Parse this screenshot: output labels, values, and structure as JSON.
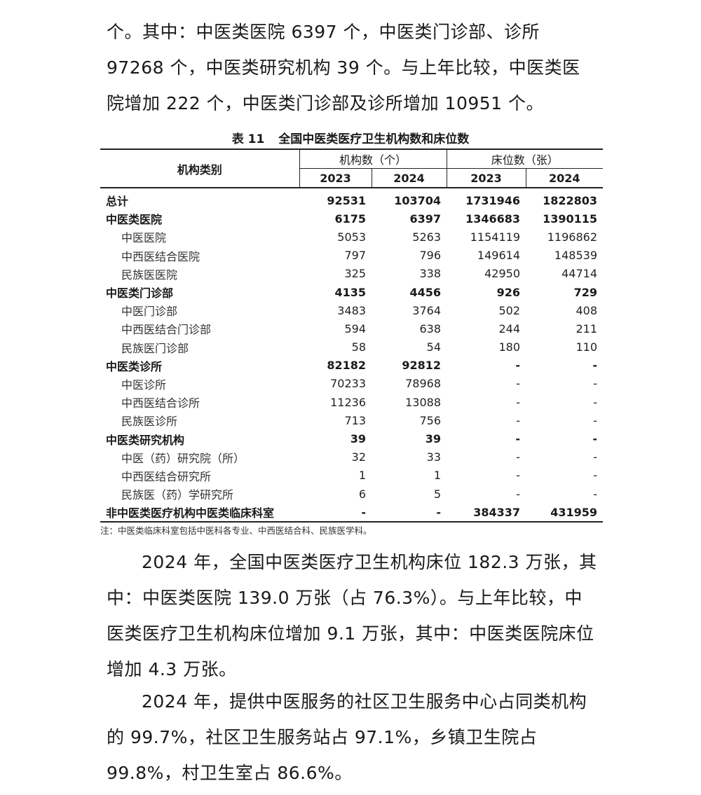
{
  "paragraph1": "个。其中：中医类医院 6397 个，中医类门诊部、诊所 97268 个，中医类研究机构 39 个。与上年比较，中医类医院增加 222 个，中医类门诊部及诊所增加 10951 个。",
  "table": {
    "number": "表 11",
    "title": "全国中医类医疗卫生机构数和床位数",
    "col_category": "机构类别",
    "group_institutions": "机构数（个）",
    "group_beds": "床位数（张）",
    "years": [
      "2023",
      "2024",
      "2023",
      "2024"
    ],
    "rows": [
      {
        "label": "总计",
        "bold": true,
        "values": [
          "92531",
          "103704",
          "1731946",
          "1822803"
        ]
      },
      {
        "label": "中医类医院",
        "bold": true,
        "values": [
          "6175",
          "6397",
          "1346683",
          "1390115"
        ]
      },
      {
        "label": "中医医院",
        "bold": false,
        "values": [
          "5053",
          "5263",
          "1154119",
          "1196862"
        ]
      },
      {
        "label": "中西医结合医院",
        "bold": false,
        "values": [
          "797",
          "796",
          "149614",
          "148539"
        ]
      },
      {
        "label": "民族医医院",
        "bold": false,
        "values": [
          "325",
          "338",
          "42950",
          "44714"
        ]
      },
      {
        "label": "中医类门诊部",
        "bold": true,
        "values": [
          "4135",
          "4456",
          "926",
          "729"
        ]
      },
      {
        "label": "中医门诊部",
        "bold": false,
        "values": [
          "3483",
          "3764",
          "502",
          "408"
        ]
      },
      {
        "label": "中西医结合门诊部",
        "bold": false,
        "values": [
          "594",
          "638",
          "244",
          "211"
        ]
      },
      {
        "label": "民族医门诊部",
        "bold": false,
        "values": [
          "58",
          "54",
          "180",
          "110"
        ]
      },
      {
        "label": "中医类诊所",
        "bold": true,
        "values": [
          "82182",
          "92812",
          "-",
          "-"
        ]
      },
      {
        "label": "中医诊所",
        "bold": false,
        "values": [
          "70233",
          "78968",
          "-",
          "-"
        ]
      },
      {
        "label": "中西医结合诊所",
        "bold": false,
        "values": [
          "11236",
          "13088",
          "-",
          "-"
        ]
      },
      {
        "label": "民族医诊所",
        "bold": false,
        "values": [
          "713",
          "756",
          "-",
          "-"
        ]
      },
      {
        "label": "中医类研究机构",
        "bold": true,
        "values": [
          "39",
          "39",
          "-",
          "-"
        ]
      },
      {
        "label": "中医（药）研究院（所）",
        "bold": false,
        "values": [
          "32",
          "33",
          "-",
          "-"
        ]
      },
      {
        "label": "中西医结合研究所",
        "bold": false,
        "values": [
          "1",
          "1",
          "-",
          "-"
        ]
      },
      {
        "label": "民族医（药）学研究所",
        "bold": false,
        "values": [
          "6",
          "5",
          "-",
          "-"
        ]
      },
      {
        "label": "非中医类医疗机构中医类临床科室",
        "bold": true,
        "values": [
          "-",
          "-",
          "384337",
          "431959"
        ]
      }
    ],
    "note": "注：中医类临床科室包括中医科各专业、中西医结合科、民族医学科。"
  },
  "paragraph2": "2024 年，全国中医类医疗卫生机构床位 182.3 万张，其中：中医类医院 139.0 万张（占 76.3%）。与上年比较，中医类医疗卫生机构床位增加 9.1 万张，其中：中医类医院床位增加 4.3 万张。",
  "paragraph3": "2024 年，提供中医服务的社区卫生服务中心占同类机构的 99.7%，社区卫生服务站占 97.1%，乡镇卫生院占 99.8%，村卫生室占 86.6%。"
}
